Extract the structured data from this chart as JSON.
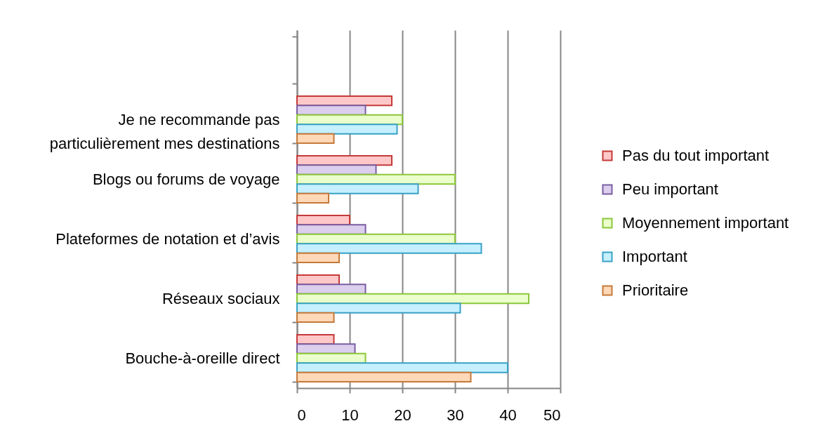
{
  "chart_data": {
    "type": "bar",
    "orientation": "horizontal",
    "categories": [
      null,
      "Je ne recommande pas particulièrement mes destinations",
      "Blogs ou forums de voyage",
      "Plateformes de notation et d’avis",
      "Réseaux sociaux",
      "Bouche-à-oreille direct"
    ],
    "series": [
      {
        "name": "Pas du tout important",
        "color": "#ffc8c8",
        "values": [
          null,
          18,
          18,
          10,
          8,
          7
        ]
      },
      {
        "name": "Peu important",
        "color": "#dccfee",
        "values": [
          null,
          13,
          15,
          13,
          13,
          11
        ]
      },
      {
        "name": "Moyennement important",
        "color": "#eaffcc",
        "values": [
          null,
          20,
          30,
          30,
          44,
          13
        ]
      },
      {
        "name": "Important",
        "color": "#c6f0ff",
        "values": [
          null,
          19,
          23,
          35,
          31,
          40
        ]
      },
      {
        "name": "Prioritaire",
        "color": "#ffd8b8",
        "values": [
          null,
          7,
          6,
          8,
          7,
          33
        ]
      }
    ],
    "xlim": [
      0,
      50
    ],
    "xticks": [
      0,
      10,
      20,
      30,
      40,
      50
    ],
    "grid": "x",
    "legend": "right"
  }
}
